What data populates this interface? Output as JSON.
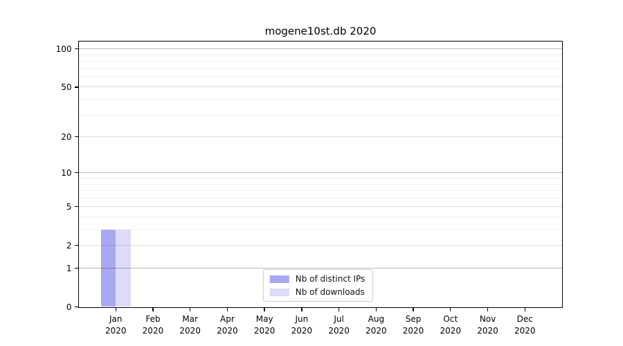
{
  "title": "mogene10st.db 2020",
  "chart_data": {
    "type": "bar",
    "title": "mogene10st.db 2020",
    "x_ticks": [
      {
        "month": "Jan",
        "year": "2020"
      },
      {
        "month": "Feb",
        "year": "2020"
      },
      {
        "month": "Mar",
        "year": "2020"
      },
      {
        "month": "Apr",
        "year": "2020"
      },
      {
        "month": "May",
        "year": "2020"
      },
      {
        "month": "Jun",
        "year": "2020"
      },
      {
        "month": "Jul",
        "year": "2020"
      },
      {
        "month": "Aug",
        "year": "2020"
      },
      {
        "month": "Sep",
        "year": "2020"
      },
      {
        "month": "Oct",
        "year": "2020"
      },
      {
        "month": "Nov",
        "year": "2020"
      },
      {
        "month": "Dec",
        "year": "2020"
      }
    ],
    "series": [
      {
        "name": "Nb of distinct IPs",
        "color": "#a9a9f2",
        "values": [
          3,
          0,
          0,
          0,
          0,
          0,
          0,
          0,
          0,
          0,
          0,
          0
        ]
      },
      {
        "name": "Nb of downloads",
        "color": "#dcdcf9",
        "values": [
          3,
          0,
          0,
          0,
          0,
          0,
          0,
          0,
          0,
          0,
          0,
          0
        ]
      }
    ],
    "y_axis": {
      "scale": "log1p",
      "ticks": [
        0,
        1,
        2,
        5,
        10,
        20,
        50,
        100
      ],
      "minor_ticks": [
        3,
        4,
        6,
        7,
        8,
        9,
        30,
        40,
        60,
        70,
        80,
        90
      ],
      "ylim": [
        0,
        115
      ]
    },
    "grid": "both",
    "legend_position": "lower center",
    "xlabel": "",
    "ylabel": ""
  }
}
